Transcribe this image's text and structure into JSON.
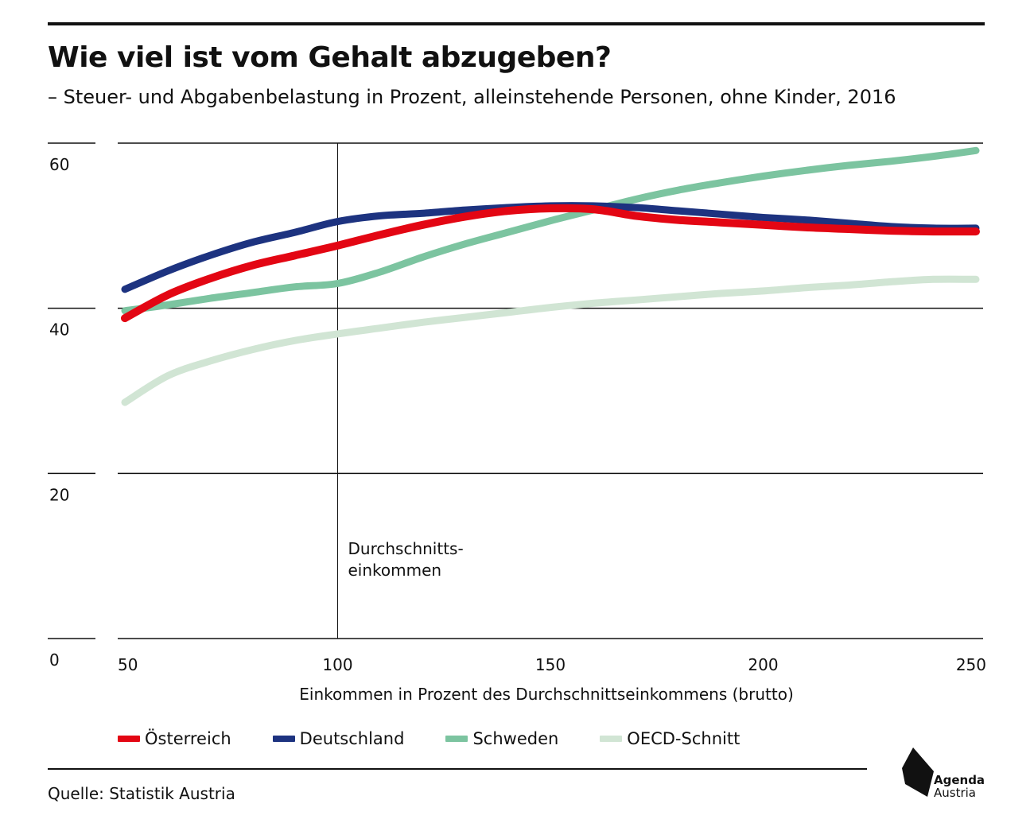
{
  "title": "Wie viel ist vom Gehalt abzugeben?",
  "subtitle": "– Steuer- und Abgabenbelastung in Prozent, alleinstehende Personen, ohne Kinder, 2016",
  "source": "Quelle: Statistik Austria",
  "logo": {
    "line1": "Agenda",
    "line2": "Austria"
  },
  "chart_data": {
    "type": "line",
    "title": "Wie viel ist vom Gehalt abzugeben?",
    "subtitle": "– Steuer- und Abgabenbelastung in Prozent, alleinstehende Personen, ohne Kinder, 2016",
    "xlabel": "Einkommen in Prozent des Durchschnittseinkommens (brutto)",
    "ylabel": "",
    "xlim": [
      50,
      250
    ],
    "ylim": [
      0,
      60
    ],
    "xticks": [
      "50",
      "100",
      "150",
      "200",
      "250"
    ],
    "yticks": [
      "0",
      "20",
      "40",
      "60"
    ],
    "grid": "horizontal",
    "legend_position": "bottom",
    "annotation": {
      "x": 100,
      "line1": "Durchschnitts-",
      "line2": "einkommen"
    },
    "x": [
      50,
      60,
      70,
      80,
      90,
      100,
      110,
      120,
      130,
      140,
      150,
      160,
      170,
      180,
      190,
      200,
      210,
      220,
      230,
      240,
      250
    ],
    "series": [
      {
        "name": "Österreich",
        "color": "#e30613",
        "values": [
          38.8,
          41.6,
          43.6,
          45.2,
          46.4,
          47.6,
          48.9,
          50.1,
          51.1,
          51.8,
          52.1,
          52.0,
          51.2,
          50.7,
          50.4,
          50.1,
          49.8,
          49.6,
          49.4,
          49.3,
          49.3
        ]
      },
      {
        "name": "Deutschland",
        "color": "#1d3380",
        "values": [
          42.3,
          44.5,
          46.4,
          48.0,
          49.2,
          50.5,
          51.2,
          51.5,
          51.9,
          52.2,
          52.4,
          52.4,
          52.2,
          51.8,
          51.4,
          51.0,
          50.7,
          50.3,
          49.9,
          49.7,
          49.7
        ]
      },
      {
        "name": "Schweden",
        "color": "#7cc4a0",
        "values": [
          39.7,
          40.4,
          41.2,
          41.9,
          42.6,
          43.0,
          44.4,
          46.2,
          47.8,
          49.2,
          50.6,
          51.9,
          53.2,
          54.3,
          55.2,
          56.0,
          56.7,
          57.3,
          57.8,
          58.4,
          59.1
        ]
      },
      {
        "name": "OECD-Schnitt",
        "color": "#d1e5d4",
        "values": [
          28.6,
          31.8,
          33.6,
          35.0,
          36.1,
          36.9,
          37.6,
          38.3,
          38.9,
          39.5,
          40.1,
          40.6,
          41.0,
          41.4,
          41.8,
          42.1,
          42.5,
          42.8,
          43.2,
          43.5,
          43.5
        ]
      }
    ]
  }
}
